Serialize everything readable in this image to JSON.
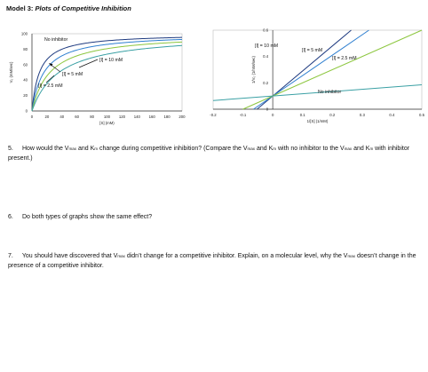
{
  "model_title": {
    "bold": "Model 3: ",
    "italic": "Plots of Competitive Inhibition"
  },
  "colors": {
    "navy": "#1f3b80",
    "blue": "#2e7fd0",
    "teal": "#3aa0a4",
    "green": "#8cc63e"
  },
  "chart_data": [
    {
      "type": "line",
      "xlabel": "[S] (mM)",
      "ylabel": "V₀ (mM/sec)",
      "xlim": [
        0,
        200
      ],
      "ylim": [
        0,
        100
      ],
      "x_ticks": [
        "0",
        "20",
        "40",
        "60",
        "80",
        "100",
        "120",
        "140",
        "160",
        "180",
        "200"
      ],
      "y_ticks": [
        "0",
        "20",
        "40",
        "60",
        "80",
        "100"
      ],
      "annotations": [
        "No inhibitor",
        "[I] = 10 mM",
        "[I] = 5 mM",
        "[I] = 2.5 mM"
      ],
      "series": [
        {
          "name": "No inhibitor",
          "color": "#1f3b80",
          "vmax": 100,
          "km": 10
        },
        {
          "name": "[I] = 2.5 mM",
          "color": "#2e7fd0",
          "vmax": 100,
          "km": 16
        },
        {
          "name": "[I] = 5 mM",
          "color": "#8cc63e",
          "vmax": 100,
          "km": 24
        },
        {
          "name": "[I] = 10 mM",
          "color": "#3aa0a4",
          "vmax": 100,
          "km": 36
        }
      ]
    },
    {
      "type": "line",
      "xlabel": "1/[S] (1/mM)",
      "ylabel": "1/V₀ (1/mM/sec)",
      "xlim": [
        -0.2,
        0.5
      ],
      "ylim": [
        0,
        0.6
      ],
      "x_ticks": [
        "-0.2",
        "-0.1",
        "0",
        "0.1",
        "0.2",
        "0.3",
        "0.4",
        "0.5"
      ],
      "y_ticks": [
        "0",
        "0.2",
        "0.4",
        "0.6"
      ],
      "annotations": [
        "[I] = 10 mM",
        "[I] = 5 mM",
        "[I] = 2.5 mM",
        "No inhibitor"
      ],
      "series": [
        {
          "name": "[I] = 10 mM",
          "color": "#1f3b80",
          "intercept": 0.1,
          "slope": 1.9
        },
        {
          "name": "[I] = 5 mM",
          "color": "#2e7fd0",
          "intercept": 0.1,
          "slope": 1.55
        },
        {
          "name": "[I] = 2.5 mM",
          "color": "#8cc63e",
          "intercept": 0.1,
          "slope": 1.0
        },
        {
          "name": "No inhibitor",
          "color": "#3aa0a4",
          "intercept": 0.1,
          "slope": 0.17
        }
      ]
    }
  ],
  "questions": [
    {
      "num": "5.",
      "parts": [
        "How would the V",
        "max",
        " and K",
        "m",
        " change during competitive inhibition? (Compare the V",
        "max",
        " and K",
        "m",
        " with no inhibitor to the V",
        "max",
        " and K",
        "m",
        " with inhibitor present.)"
      ]
    },
    {
      "num": "6.",
      "parts": [
        "Do both types of graphs show the same effect?"
      ]
    },
    {
      "num": "7.",
      "parts": [
        "You should have discovered that V",
        "max",
        " didn’t change for a competitive inhibitor. Explain, on a molecular level, why the V",
        "max",
        " doesn’t change in the presence of a competitive inhibitor."
      ]
    }
  ]
}
